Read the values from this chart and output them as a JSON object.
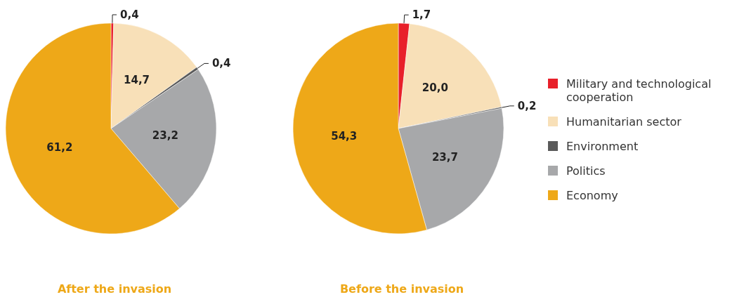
{
  "chart_data": {
    "type": "pie",
    "categories": [
      "Military and technological cooperation",
      "Humanitarian sector",
      "Environment",
      "Politics",
      "Economy"
    ],
    "colors": [
      "#e8202a",
      "#f8e0b8",
      "#5a5a5a",
      "#a7a8aa",
      "#eea818"
    ],
    "legend": "right",
    "series": [
      {
        "name": "After the invasion",
        "values": [
          0.4,
          14.7,
          0.4,
          23.2,
          61.2
        ],
        "value_labels": [
          "0,4",
          "14,7",
          "0,4",
          "23,2",
          "61,2"
        ]
      },
      {
        "name": "Before the invasion",
        "values": [
          1.7,
          20.0,
          0.2,
          23.7,
          54.3
        ],
        "value_labels": [
          "1,7",
          "20,0",
          "0,2",
          "23,7",
          "54,3"
        ]
      }
    ]
  }
}
